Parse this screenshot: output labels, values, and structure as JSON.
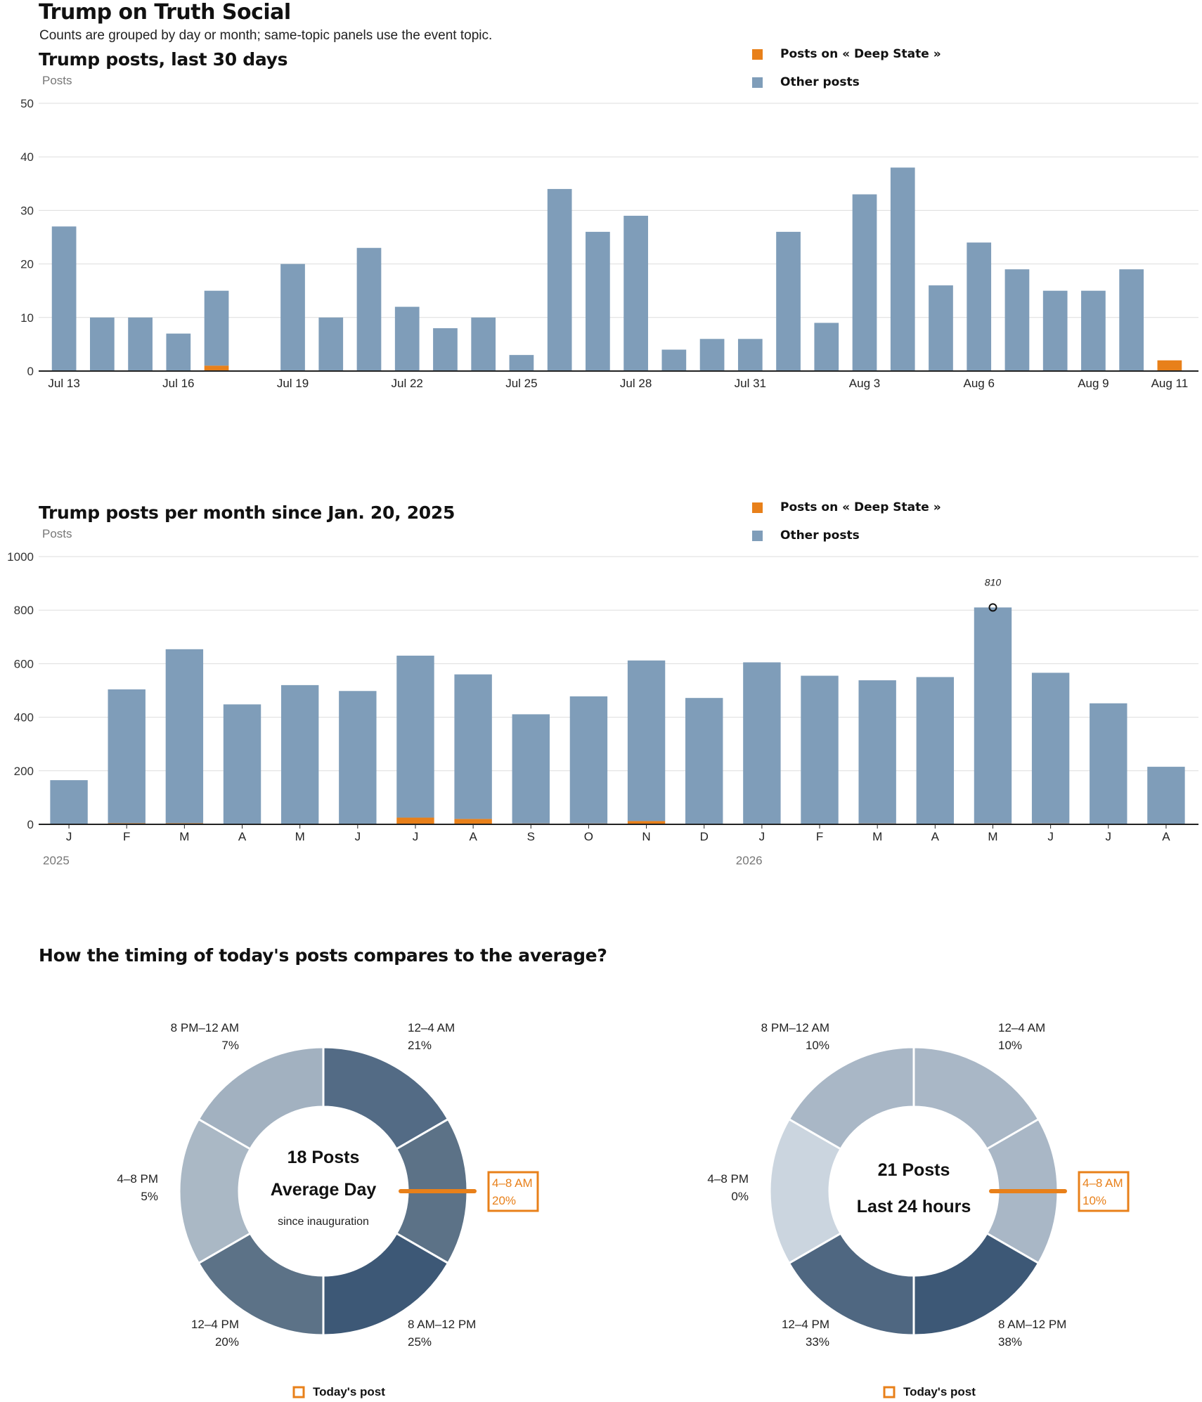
{
  "header": {
    "title": "Trump on Truth Social",
    "subtitle": "Counts are grouped by day or month; same-topic panels use the event topic."
  },
  "colors": {
    "topic": "#e8801a",
    "other": "#7f9db9",
    "grid": "#dddddd",
    "axis": "#222222"
  },
  "legend": {
    "topic_label": "Posts on « Deep State »",
    "other_label": "Other posts"
  },
  "section_title": "How the timing of today's posts compares to the average?",
  "chart_data": [
    {
      "type": "bar",
      "title": "Trump posts, last 30 days",
      "ylabel": "Posts",
      "stacked": true,
      "ylim": [
        0,
        50
      ],
      "yticks": [
        0,
        10,
        20,
        30,
        40,
        50
      ],
      "categories": [
        "Jul 13",
        "Jul 14",
        "Jul 15",
        "Jul 16",
        "Jul 17",
        "Jul 18",
        "Jul 19",
        "Jul 20",
        "Jul 21",
        "Jul 22",
        "Jul 23",
        "Jul 24",
        "Jul 25",
        "Jul 26",
        "Jul 27",
        "Jul 28",
        "Jul 29",
        "Jul 30",
        "Jul 31",
        "Aug 1",
        "Aug 2",
        "Aug 3",
        "Aug 4",
        "Aug 5",
        "Aug 6",
        "Aug 7",
        "Aug 8",
        "Aug 9",
        "Aug 10",
        "Aug 11"
      ],
      "tick_labels": [
        "Jul 13",
        "",
        "",
        "Jul 16",
        "",
        "",
        "Jul 19",
        "",
        "",
        "Jul 22",
        "",
        "",
        "Jul 25",
        "",
        "",
        "Jul 28",
        "",
        "",
        "Jul 31",
        "",
        "",
        "Aug 3",
        "",
        "",
        "Aug 6",
        "",
        "",
        "Aug 9",
        "",
        "Aug 11"
      ],
      "series": [
        {
          "name": "Posts on « Deep State »",
          "values": [
            0,
            0,
            0,
            0,
            1,
            0,
            0,
            0,
            0,
            0,
            0,
            0,
            0,
            0,
            0,
            0,
            0,
            0,
            0,
            0,
            0,
            0,
            0,
            0,
            0,
            0,
            0,
            0,
            0,
            2
          ]
        },
        {
          "name": "Other posts",
          "values": [
            27,
            10,
            10,
            7,
            14,
            0,
            20,
            10,
            23,
            12,
            8,
            10,
            3,
            34,
            26,
            29,
            4,
            6,
            6,
            26,
            9,
            33,
            38,
            16,
            24,
            19,
            15,
            15,
            19,
            0
          ]
        }
      ],
      "legend": "top-right",
      "grid": true
    },
    {
      "type": "bar",
      "title": "Trump posts per month since Jan. 20, 2025",
      "ylabel": "Posts",
      "stacked": true,
      "ylim": [
        0,
        1000
      ],
      "yticks": [
        0,
        200,
        400,
        600,
        800,
        1000
      ],
      "categories": [
        "J",
        "F",
        "M",
        "A",
        "M",
        "J",
        "J",
        "A",
        "S",
        "O",
        "N",
        "D",
        "J",
        "F",
        "M",
        "A",
        "M",
        "J",
        "J",
        "A"
      ],
      "year_labels": [
        {
          "index": 0,
          "label": "2025"
        },
        {
          "index": 12,
          "label": "2026"
        }
      ],
      "series": [
        {
          "name": "Posts on « Deep State »",
          "values": [
            0,
            4,
            4,
            0,
            0,
            0,
            25,
            20,
            3,
            3,
            12,
            0,
            0,
            0,
            3,
            0,
            3,
            3,
            0,
            0
          ]
        },
        {
          "name": "Other posts",
          "values": [
            165,
            500,
            650,
            448,
            520,
            498,
            605,
            540,
            408,
            475,
            600,
            472,
            605,
            555,
            535,
            550,
            807,
            563,
            452,
            215
          ]
        }
      ],
      "annotation": {
        "index": 16,
        "value": 810,
        "label": "810"
      },
      "legend": "top-right",
      "grid": true
    },
    {
      "type": "pie",
      "title": "18 Posts",
      "center_label": "Average Day",
      "center_note": "since inauguration",
      "slices": [
        {
          "label": "12–4 AM",
          "value": 21,
          "pct": "21%",
          "color": "#536b85"
        },
        {
          "label": "4–8 AM",
          "value": 20,
          "pct": "20%",
          "color": "#5c7287"
        },
        {
          "label": "8 AM–12 PM",
          "value": 25,
          "pct": "25%",
          "color": "#3d5876"
        },
        {
          "label": "12–4 PM",
          "value": 20,
          "pct": "20%",
          "color": "#5c7287"
        },
        {
          "label": "4–8 PM",
          "value": 5,
          "pct": "5%",
          "color": "#aab8c5"
        },
        {
          "label": "8 PM–12 AM",
          "value": 7,
          "pct": "7%",
          "color": "#a2b1c0"
        }
      ],
      "highlight_index": 1,
      "legend_label": "Today's post"
    },
    {
      "type": "pie",
      "title": "21 Posts",
      "center_label": "Last 24 hours",
      "center_note": "",
      "slices": [
        {
          "label": "12–4 AM",
          "value": 10,
          "pct": "10%",
          "color": "#a9b7c6"
        },
        {
          "label": "4–8 AM",
          "value": 10,
          "pct": "10%",
          "color": "#a9b7c6"
        },
        {
          "label": "8 AM–12 PM",
          "value": 38,
          "pct": "38%",
          "color": "#3d5876"
        },
        {
          "label": "12–4 PM",
          "value": 33,
          "pct": "33%",
          "color": "#4f6781"
        },
        {
          "label": "4–8 PM",
          "value": 0,
          "pct": "0%",
          "color": "#cbd5df"
        },
        {
          "label": "8 PM–12 AM",
          "value": 10,
          "pct": "10%",
          "color": "#a9b7c6"
        }
      ],
      "highlight_index": 1,
      "legend_label": "Today's post"
    }
  ]
}
